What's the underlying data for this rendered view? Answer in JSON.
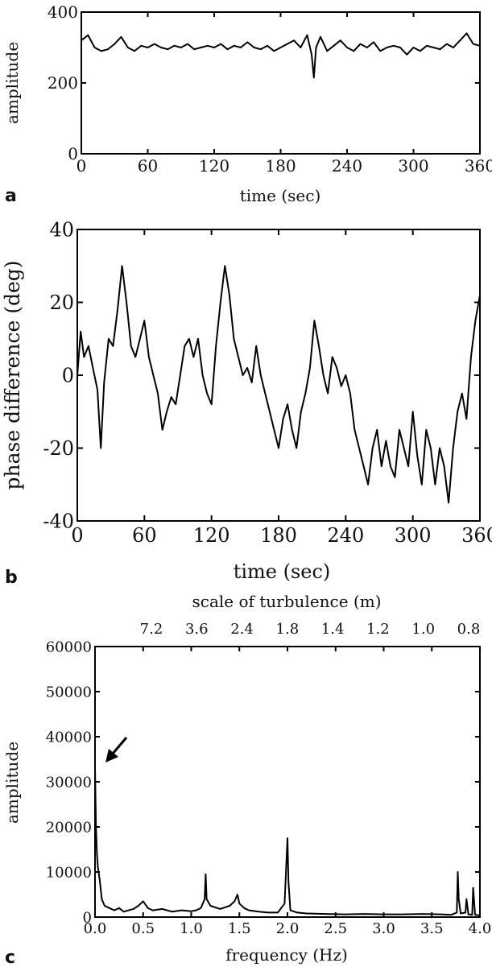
{
  "chart_data": [
    {
      "type": "line",
      "panel_label": "a",
      "xlabel": "time (sec)",
      "ylabel": "amplitude",
      "xlim": [
        0,
        360
      ],
      "ylim": [
        0,
        400
      ],
      "xticks": [
        0,
        60,
        120,
        180,
        240,
        300,
        360
      ],
      "yticks": [
        0,
        200,
        400
      ],
      "grid": false,
      "series": [
        {
          "x": [
            0,
            6,
            12,
            18,
            24,
            30,
            36,
            42,
            48,
            54,
            60,
            66,
            72,
            78,
            84,
            90,
            96,
            102,
            108,
            114,
            120,
            126,
            132,
            138,
            144,
            150,
            156,
            162,
            168,
            174,
            180,
            186,
            192,
            198,
            204,
            208,
            210,
            212,
            216,
            222,
            228,
            234,
            240,
            246,
            252,
            258,
            264,
            270,
            276,
            282,
            288,
            294,
            300,
            306,
            312,
            318,
            324,
            330,
            336,
            342,
            348,
            354,
            360
          ],
          "values": [
            320,
            335,
            300,
            290,
            295,
            310,
            330,
            300,
            290,
            305,
            300,
            310,
            300,
            295,
            305,
            300,
            310,
            295,
            300,
            305,
            300,
            310,
            295,
            305,
            300,
            315,
            300,
            295,
            305,
            290,
            300,
            310,
            320,
            300,
            335,
            280,
            215,
            300,
            330,
            290,
            305,
            320,
            300,
            290,
            310,
            300,
            315,
            290,
            300,
            305,
            300,
            280,
            300,
            290,
            305,
            300,
            295,
            310,
            300,
            320,
            340,
            310,
            305
          ]
        }
      ]
    },
    {
      "type": "line",
      "panel_label": "b",
      "xlabel": "time (sec)",
      "ylabel": "phase difference (deg)",
      "xlim": [
        0,
        360
      ],
      "ylim": [
        -40,
        40
      ],
      "xticks": [
        0,
        60,
        120,
        180,
        240,
        300,
        360
      ],
      "yticks": [
        -40,
        -20,
        0,
        20,
        40
      ],
      "grid": false,
      "series": [
        {
          "x": [
            0,
            3,
            6,
            10,
            14,
            18,
            21,
            24,
            28,
            32,
            36,
            40,
            44,
            48,
            52,
            56,
            60,
            64,
            68,
            72,
            76,
            80,
            84,
            88,
            92,
            96,
            100,
            104,
            108,
            112,
            116,
            120,
            124,
            128,
            132,
            136,
            140,
            144,
            148,
            152,
            156,
            160,
            164,
            168,
            172,
            176,
            180,
            184,
            188,
            192,
            196,
            200,
            204,
            208,
            212,
            216,
            220,
            224,
            228,
            232,
            236,
            240,
            244,
            248,
            252,
            256,
            260,
            264,
            268,
            272,
            276,
            280,
            284,
            288,
            292,
            296,
            300,
            304,
            308,
            312,
            316,
            320,
            324,
            328,
            332,
            336,
            340,
            344,
            348,
            352,
            356,
            360
          ],
          "values": [
            0,
            12,
            5,
            8,
            2,
            -4,
            -20,
            -2,
            10,
            8,
            18,
            30,
            20,
            8,
            5,
            10,
            15,
            5,
            0,
            -5,
            -15,
            -10,
            -6,
            -8,
            0,
            8,
            10,
            5,
            10,
            0,
            -5,
            -8,
            8,
            20,
            30,
            22,
            10,
            5,
            0,
            2,
            -2,
            8,
            0,
            -5,
            -10,
            -15,
            -20,
            -12,
            -8,
            -15,
            -20,
            -10,
            -5,
            2,
            15,
            8,
            0,
            -5,
            5,
            2,
            -3,
            0,
            -5,
            -15,
            -20,
            -25,
            -30,
            -20,
            -15,
            -25,
            -18,
            -25,
            -28,
            -15,
            -20,
            -25,
            -10,
            -22,
            -30,
            -15,
            -20,
            -30,
            -20,
            -25,
            -35,
            -20,
            -10,
            -5,
            -12,
            5,
            15,
            22
          ]
        }
      ]
    },
    {
      "type": "line",
      "panel_label": "c",
      "xlabel": "frequency (Hz)",
      "ylabel": "amplitude",
      "top_axis_label": "scale of turbulence (m)",
      "top_ticks": [
        "7.2",
        "3.6",
        "2.4",
        "1.8",
        "1.4",
        "1.2",
        "1.0",
        "0.8"
      ],
      "xlim": [
        0,
        4
      ],
      "ylim": [
        0,
        60000
      ],
      "xticks": [
        0.0,
        0.5,
        1.0,
        1.5,
        2.0,
        2.5,
        3.0,
        3.5,
        4.0
      ],
      "yticks": [
        0,
        10000,
        20000,
        30000,
        40000,
        50000,
        60000
      ],
      "grid": false,
      "annotation": "arrow pointing to low-frequency peak",
      "series": [
        {
          "x": [
            0.0,
            0.01,
            0.02,
            0.03,
            0.05,
            0.07,
            0.1,
            0.15,
            0.2,
            0.25,
            0.3,
            0.35,
            0.4,
            0.45,
            0.5,
            0.55,
            0.6,
            0.7,
            0.8,
            0.9,
            1.0,
            1.05,
            1.1,
            1.14,
            1.15,
            1.16,
            1.2,
            1.3,
            1.4,
            1.45,
            1.48,
            1.5,
            1.55,
            1.6,
            1.7,
            1.8,
            1.9,
            1.97,
            2.0,
            2.01,
            2.03,
            2.1,
            2.2,
            2.4,
            2.6,
            2.8,
            3.0,
            3.2,
            3.4,
            3.6,
            3.7,
            3.76,
            3.77,
            3.78,
            3.8,
            3.85,
            3.86,
            3.88,
            3.92,
            3.93,
            3.95,
            4.0
          ],
          "values": [
            33000,
            20000,
            14000,
            11000,
            8000,
            4000,
            2500,
            2000,
            1500,
            2000,
            1200,
            1500,
            1800,
            2500,
            3500,
            2000,
            1500,
            1800,
            1200,
            1500,
            1300,
            1500,
            2000,
            4000,
            9500,
            4000,
            2500,
            1800,
            2500,
            3500,
            5000,
            3000,
            2000,
            1500,
            1200,
            1000,
            1000,
            3000,
            17500,
            8000,
            1500,
            1000,
            800,
            700,
            600,
            700,
            600,
            600,
            700,
            600,
            500,
            1000,
            10000,
            4000,
            800,
            1000,
            4000,
            600,
            500,
            6500,
            500,
            400
          ]
        }
      ]
    }
  ]
}
